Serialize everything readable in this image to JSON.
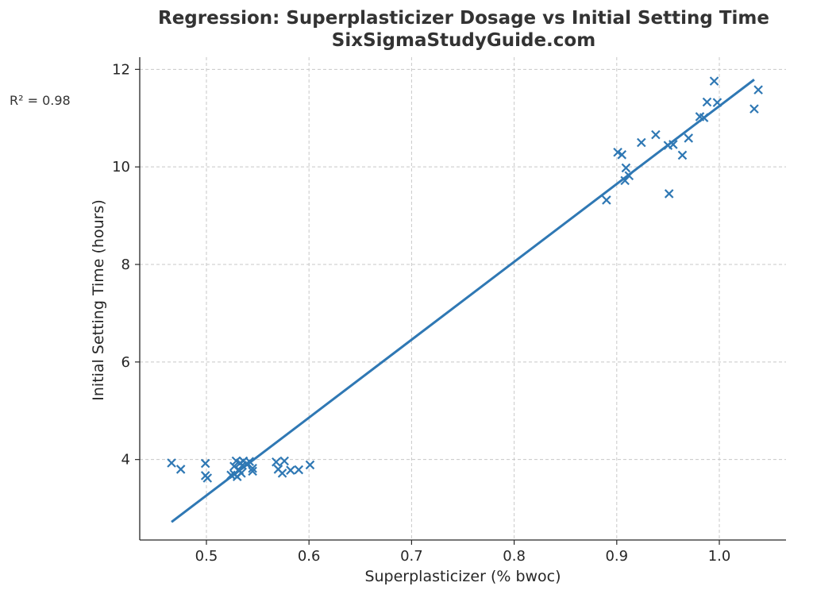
{
  "chart_data": {
    "type": "scatter",
    "title": "Regression: Superplasticizer Dosage vs Initial Setting Time",
    "subtitle": "SixSigmaStudyGuide.com",
    "xlabel": "Superplasticizer (% bwoc)",
    "ylabel": "Initial Setting Time (hours)",
    "annotation": "R² = 0.98",
    "xlim": [
      0.435,
      1.065
    ],
    "ylim": [
      2.35,
      12.25
    ],
    "xticks": [
      {
        "value": 0.5,
        "label": "0.5"
      },
      {
        "value": 0.6,
        "label": "0.6"
      },
      {
        "value": 0.7,
        "label": "0.7"
      },
      {
        "value": 0.8,
        "label": "0.8"
      },
      {
        "value": 0.9,
        "label": "0.9"
      },
      {
        "value": 1.0,
        "label": "1.0"
      }
    ],
    "yticks": [
      {
        "value": 4,
        "label": "4"
      },
      {
        "value": 6,
        "label": "6"
      },
      {
        "value": 8,
        "label": "8"
      },
      {
        "value": 10,
        "label": "10"
      },
      {
        "value": 12,
        "label": "12"
      }
    ],
    "grid": true,
    "color": "#2f78b4",
    "marker": "x",
    "points": [
      [
        0.466,
        3.93
      ],
      [
        0.475,
        3.8
      ],
      [
        0.499,
        3.92
      ],
      [
        0.499,
        3.67
      ],
      [
        0.501,
        3.62
      ],
      [
        0.524,
        3.68
      ],
      [
        0.527,
        3.86
      ],
      [
        0.527,
        3.7
      ],
      [
        0.529,
        3.97
      ],
      [
        0.53,
        3.65
      ],
      [
        0.532,
        3.78
      ],
      [
        0.533,
        3.93
      ],
      [
        0.534,
        3.72
      ],
      [
        0.535,
        3.88
      ],
      [
        0.536,
        3.97
      ],
      [
        0.539,
        3.91
      ],
      [
        0.542,
        3.96
      ],
      [
        0.545,
        3.76
      ],
      [
        0.545,
        3.82
      ],
      [
        0.568,
        3.95
      ],
      [
        0.57,
        3.8
      ],
      [
        0.574,
        3.72
      ],
      [
        0.576,
        3.97
      ],
      [
        0.582,
        3.78
      ],
      [
        0.59,
        3.79
      ],
      [
        0.601,
        3.89
      ],
      [
        0.89,
        9.32
      ],
      [
        0.901,
        10.3
      ],
      [
        0.905,
        10.25
      ],
      [
        0.908,
        9.72
      ],
      [
        0.909,
        9.98
      ],
      [
        0.912,
        9.82
      ],
      [
        0.924,
        10.5
      ],
      [
        0.938,
        10.66
      ],
      [
        0.95,
        10.44
      ],
      [
        0.951,
        9.45
      ],
      [
        0.955,
        10.46
      ],
      [
        0.964,
        10.24
      ],
      [
        0.97,
        10.59
      ],
      [
        0.981,
        11.03
      ],
      [
        0.985,
        11.01
      ],
      [
        0.988,
        11.33
      ],
      [
        0.995,
        11.76
      ],
      [
        0.998,
        11.32
      ],
      [
        1.034,
        11.19
      ],
      [
        1.038,
        11.58
      ]
    ],
    "regression_line": {
      "x": [
        0.466,
        1.034
      ],
      "y": [
        2.72,
        11.79
      ]
    }
  }
}
